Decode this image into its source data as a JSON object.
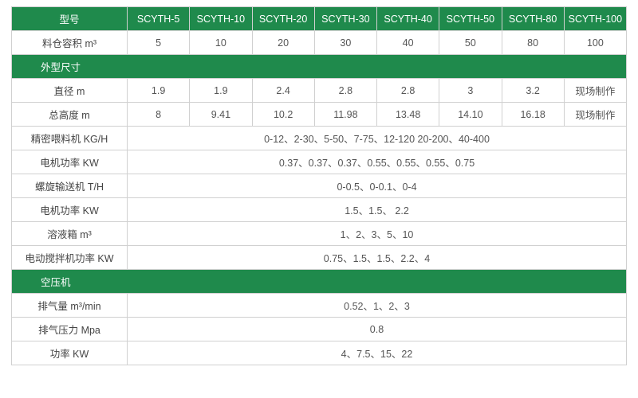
{
  "colors": {
    "header_bg": "#1f8a4c",
    "header_fg": "#ffffff",
    "border": "#d0d0d0",
    "text": "#555555"
  },
  "header": {
    "model_label": "型号",
    "models": [
      "SCYTH-5",
      "SCYTH-10",
      "SCYTH-20",
      "SCYTH-30",
      "SCYTH-40",
      "SCYTH-50",
      "SCYTH-80",
      "SCYTH-100"
    ]
  },
  "rows": [
    {
      "type": "data",
      "label": "料仓容积 m³",
      "cells": [
        "5",
        "10",
        "20",
        "30",
        "40",
        "50",
        "80",
        "100"
      ]
    },
    {
      "type": "section",
      "label": "外型尺寸"
    },
    {
      "type": "data",
      "label": "直径 m",
      "cells": [
        "1.9",
        "1.9",
        "2.4",
        "2.8",
        "2.8",
        "3",
        "3.2",
        "现场制作"
      ]
    },
    {
      "type": "data",
      "label": "总高度 m",
      "cells": [
        "8",
        "9.41",
        "10.2",
        "11.98",
        "13.48",
        "14.10",
        "16.18",
        "现场制作"
      ]
    },
    {
      "type": "span",
      "label": "精密喂料机 KG/H",
      "value": "0-12、2-30、5-50、7-75、12-120  20-200、40-400"
    },
    {
      "type": "span",
      "label": "电机功率 KW",
      "value": "0.37、0.37、0.37、0.55、0.55、0.55、0.75"
    },
    {
      "type": "span",
      "label": "螺旋输送机 T/H",
      "value": "0-0.5、0-0.1、0-4"
    },
    {
      "type": "span",
      "label": "电机功率 KW",
      "value": "1.5、1.5、 2.2"
    },
    {
      "type": "span",
      "label": "溶液箱 m³",
      "value": "1、2、3、5、10"
    },
    {
      "type": "span",
      "label": "电动搅拌机功率 KW",
      "value": "0.75、1.5、1.5、2.2、4"
    },
    {
      "type": "section",
      "label": "空压机"
    },
    {
      "type": "span",
      "label": "排气量 m³/min",
      "value": "0.52、1、2、3"
    },
    {
      "type": "span",
      "label": "排气压力 Mpa",
      "value": "0.8"
    },
    {
      "type": "span",
      "label": "功率 KW",
      "value": "4、7.5、15、22"
    }
  ]
}
